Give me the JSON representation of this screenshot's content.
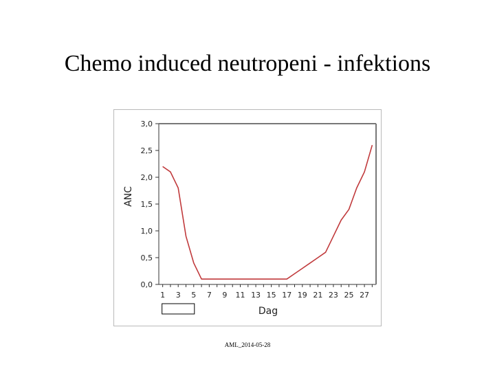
{
  "slide": {
    "title": "Chemo induced  neutropeni - infektions",
    "footer": "AML_2014-05-28"
  },
  "chart_data": {
    "type": "line",
    "title": "",
    "xlabel": "Dag",
    "ylabel": "ANC",
    "x_ticks": [
      1,
      3,
      5,
      7,
      9,
      11,
      13,
      15,
      17,
      19,
      21,
      23,
      25,
      27
    ],
    "y_ticks": [
      "0,0",
      "0,5",
      "1,0",
      "1,5",
      "2,0",
      "2,5",
      "3,0"
    ],
    "xlim": [
      0.5,
      28.5
    ],
    "ylim": [
      0,
      3
    ],
    "grid": false,
    "legend": "none",
    "series": [
      {
        "color": "#c0393b",
        "x": [
          1,
          2,
          3,
          4,
          5,
          6,
          7,
          8,
          9,
          10,
          11,
          12,
          13,
          14,
          15,
          16,
          17,
          18,
          19,
          20,
          21,
          22,
          23,
          24,
          25,
          26,
          27,
          28
        ],
        "y": [
          2.2,
          2.1,
          1.8,
          0.9,
          0.4,
          0.1,
          0.1,
          0.1,
          0.1,
          0.1,
          0.1,
          0.1,
          0.1,
          0.1,
          0.1,
          0.1,
          0.1,
          0.2,
          0.3,
          0.4,
          0.5,
          0.6,
          0.9,
          1.2,
          1.4,
          1.8,
          2.1,
          2.6
        ]
      }
    ],
    "annotations": [
      {
        "type": "box",
        "x_from": 1,
        "x_to": 5,
        "color": "#000000"
      }
    ]
  }
}
